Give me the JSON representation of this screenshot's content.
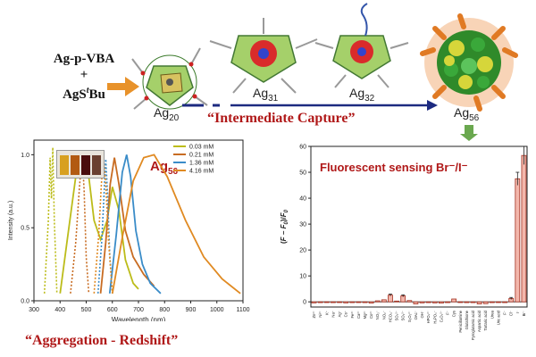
{
  "reagents": {
    "line1": "Ag-p-VBA",
    "plus": "+",
    "line2": "AgS",
    "line2_sup": "t",
    "line2_tail": "Bu"
  },
  "clusters": [
    {
      "base": "Ag",
      "sub": "20"
    },
    {
      "base": "Ag",
      "sub": "31"
    },
    {
      "base": "Ag",
      "sub": "32"
    },
    {
      "base": "Ag",
      "sub": "56"
    }
  ],
  "capture_label": "“Intermediate Capture”",
  "redshift_label": "“Aggregation - Redshift”",
  "colors": {
    "accent_red": "#b01818",
    "arrow_orange": "#e8922a",
    "arrow_navy": "#1c2a80",
    "arrow_green": "#6aa84f",
    "bar_fill": "#f3b7ac",
    "bar_stroke": "#a33020"
  },
  "chart_data": [
    {
      "type": "line",
      "title": "Ag56",
      "title_base": "Ag",
      "title_sub": "56",
      "xlabel": "Wavelength (nm)",
      "ylabel": "Intensity (a.u.)",
      "xlim": [
        300,
        1100
      ],
      "ylim": [
        0,
        1.1
      ],
      "xticks": [
        300,
        400,
        500,
        600,
        700,
        800,
        900,
        1000,
        1100
      ],
      "yticks": [
        0.0,
        0.5,
        1.0
      ],
      "legend_position": "top-right",
      "series": [
        {
          "name": "0.03 mM",
          "color": "#bcbc1a",
          "excitation": [
            [
              340,
              0.05
            ],
            [
              355,
              0.55
            ],
            [
              362,
              0.98
            ],
            [
              367,
              0.7
            ],
            [
              372,
              1.05
            ],
            [
              378,
              0.55
            ],
            [
              388,
              0.05
            ]
          ],
          "emission": [
            [
              400,
              0.05
            ],
            [
              430,
              0.45
            ],
            [
              460,
              0.85
            ],
            [
              485,
              1.0
            ],
            [
              505,
              0.92
            ],
            [
              530,
              0.55
            ],
            [
              555,
              0.42
            ],
            [
              580,
              0.55
            ],
            [
              600,
              0.78
            ],
            [
              625,
              0.62
            ],
            [
              650,
              0.28
            ],
            [
              680,
              0.12
            ],
            [
              700,
              0.08
            ]
          ]
        },
        {
          "name": "0.21 mM",
          "color": "#c86c22",
          "excitation": [
            [
              440,
              0.05
            ],
            [
              460,
              0.4
            ],
            [
              475,
              0.8
            ],
            [
              485,
              1.0
            ],
            [
              492,
              0.75
            ],
            [
              500,
              0.3
            ],
            [
              510,
              0.05
            ]
          ],
          "emission": [
            [
              555,
              0.05
            ],
            [
              575,
              0.4
            ],
            [
              592,
              0.8
            ],
            [
              608,
              0.98
            ],
            [
              625,
              0.8
            ],
            [
              650,
              0.48
            ],
            [
              680,
              0.3
            ],
            [
              720,
              0.18
            ],
            [
              760,
              0.1
            ]
          ]
        },
        {
          "name": "1.36 mM",
          "color": "#3a8cc8",
          "excitation": [
            [
              545,
              0.05
            ],
            [
              560,
              0.42
            ],
            [
              568,
              0.72
            ],
            [
              575,
              0.97
            ],
            [
              582,
              0.72
            ],
            [
              590,
              0.32
            ],
            [
              600,
              0.05
            ]
          ],
          "emission": [
            [
              590,
              0.05
            ],
            [
              615,
              0.45
            ],
            [
              638,
              0.88
            ],
            [
              655,
              1.0
            ],
            [
              670,
              0.85
            ],
            [
              690,
              0.48
            ],
            [
              715,
              0.25
            ],
            [
              745,
              0.12
            ],
            [
              785,
              0.05
            ]
          ]
        },
        {
          "name": "4.16 mM",
          "color": "#e08a22",
          "excitation": [
            [
              530,
              0.05
            ],
            [
              548,
              0.45
            ],
            [
              558,
              0.8
            ],
            [
              566,
              0.98
            ],
            [
              575,
              0.8
            ],
            [
              585,
              0.42
            ],
            [
              600,
              0.05
            ]
          ],
          "emission": [
            [
              600,
              0.05
            ],
            [
              640,
              0.45
            ],
            [
              680,
              0.82
            ],
            [
              720,
              0.98
            ],
            [
              760,
              1.0
            ],
            [
              810,
              0.85
            ],
            [
              880,
              0.55
            ],
            [
              950,
              0.3
            ],
            [
              1020,
              0.15
            ],
            [
              1090,
              0.05
            ]
          ]
        }
      ]
    },
    {
      "type": "bar",
      "title": "Fluorescent sensing Br⁻/I⁻",
      "ylabel": "(F − F0)/F0",
      "ylabel_parts": {
        "open": "(",
        "f": "F",
        "minus": " − ",
        "f0": "F",
        "sub0": "0",
        "close": ")/",
        "f0b": "F",
        "sub0b": "0"
      },
      "ylim": [
        -2,
        60
      ],
      "yticks": [
        0,
        10,
        20,
        30,
        40,
        50,
        60
      ],
      "categories": [
        "Zn²⁺",
        "Ni²⁺",
        "K⁺",
        "Na⁺",
        "Ag⁺",
        "Cs⁺",
        "Fe³⁺",
        "Ca²⁺",
        "Mg²⁺",
        "Co²⁺",
        "NO₃⁻",
        "NO₂⁻",
        "HCO₃⁻",
        "SO₄²⁻",
        "SO₃²⁻",
        "S₂O₃²⁻",
        "OAc⁻",
        "OH⁻",
        "HPO₄²⁻",
        "H₂PO₄⁻",
        "C₂O₄²⁻",
        "F⁻",
        "Cys",
        "Penicillamine",
        "Glutathione",
        "Pyroglutamic acid",
        "Aspartic acid",
        "Tartaric acid",
        "Urea",
        "Uric acid",
        "F⁻",
        "Cl⁻",
        "I⁻",
        "Br⁻"
      ],
      "values": [
        -0.4,
        -0.3,
        -0.2,
        -0.3,
        -0.2,
        -0.4,
        -0.3,
        -0.2,
        -0.3,
        -0.5,
        0.4,
        0.8,
        2.6,
        0.3,
        2.3,
        0.5,
        -0.8,
        -0.4,
        -0.3,
        -0.4,
        -0.5,
        -0.3,
        1.1,
        -0.2,
        -0.3,
        -0.3,
        -0.8,
        -0.7,
        -0.3,
        -0.2,
        -0.3,
        1.3,
        47.5,
        56.5
      ],
      "errors": [
        0.3,
        0.3,
        0.3,
        0.3,
        0.3,
        0.3,
        0.3,
        0.3,
        0.3,
        0.3,
        0.3,
        0.3,
        0.4,
        0.3,
        0.4,
        0.3,
        0.3,
        0.3,
        0.3,
        0.3,
        0.3,
        0.3,
        0.3,
        0.3,
        0.3,
        0.3,
        0.3,
        0.3,
        0.3,
        0.3,
        0.3,
        0.4,
        2.5,
        3.5
      ]
    }
  ]
}
